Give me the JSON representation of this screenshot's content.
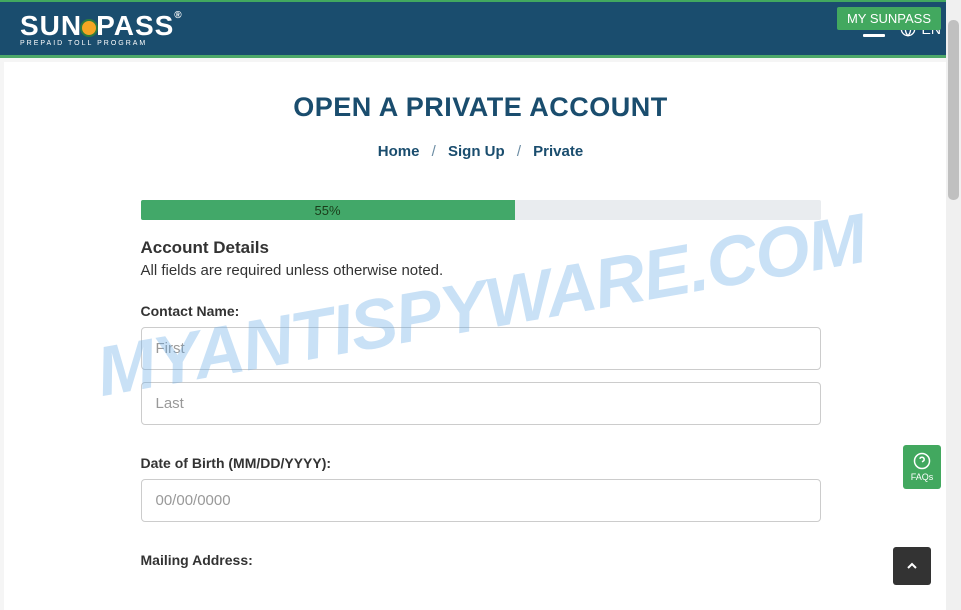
{
  "header": {
    "logo_main_1": "SUN",
    "logo_main_2": "PASS",
    "logo_sub": "PREPAID TOLL PROGRAM",
    "my_sunpass": "MY SUNPASS",
    "language": "EN"
  },
  "page": {
    "title": "OPEN A PRIVATE ACCOUNT"
  },
  "breadcrumb": {
    "home": "Home",
    "signup": "Sign Up",
    "private": "Private"
  },
  "progress": {
    "percent": 55,
    "label": "55%"
  },
  "form": {
    "section_title": "Account Details",
    "section_subtitle": "All fields are required unless otherwise noted.",
    "contact_name_label": "Contact Name:",
    "first_placeholder": "First",
    "last_placeholder": "Last",
    "dob_label": "Date of Birth (MM/DD/YYYY):",
    "dob_placeholder": "00/00/0000",
    "mailing_label": "Mailing Address:"
  },
  "faqs": {
    "label": "FAQs"
  },
  "watermark": "MYANTISPYWARE.COM",
  "colors": {
    "header_bg": "#1a4d6e",
    "accent_green": "#42a85f",
    "progress_green": "#42a869"
  }
}
